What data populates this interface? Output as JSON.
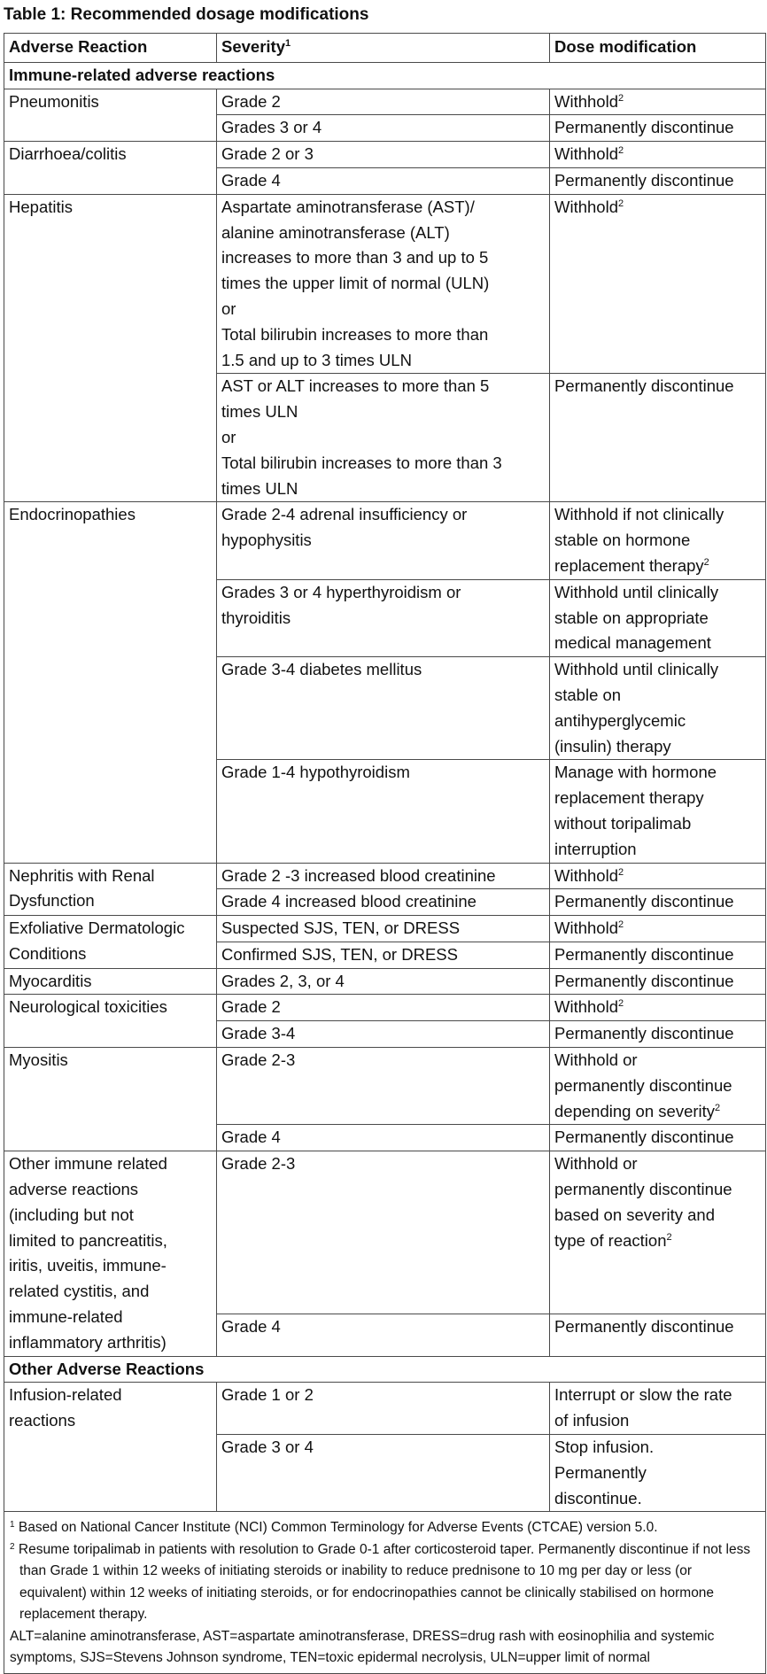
{
  "title": "Table 1: Recommended dosage modifications",
  "headers": {
    "reaction": "Adverse Reaction",
    "severity": "Severity",
    "severity_sup": "1",
    "dose": "Dose modification"
  },
  "sections": [
    {
      "heading": "Immune-related adverse reactions",
      "groups": [
        {
          "reaction": "Pneumonitis",
          "items": [
            {
              "severity": "Grade 2",
              "dose": "Withhold",
              "dose_sup": "2"
            },
            {
              "severity": "Grades 3 or 4",
              "dose": "Permanently discontinue"
            }
          ]
        },
        {
          "reaction": "Diarrhoea/colitis",
          "items": [
            {
              "severity": "Grade 2 or 3",
              "dose": "Withhold",
              "dose_sup": "2"
            },
            {
              "severity": "Grade 4",
              "dose": "Permanently discontinue"
            }
          ]
        },
        {
          "reaction": "Hepatitis",
          "items": [
            {
              "severity": "Aspartate aminotransferase (AST)/\nalanine aminotransferase (ALT)\nincreases to more than 3 and up to 5\ntimes the upper limit of normal (ULN)\nor\nTotal bilirubin increases to more than\n1.5 and up to 3 times ULN",
              "dose": "Withhold",
              "dose_sup": "2"
            },
            {
              "severity": "AST or ALT increases to more than 5\ntimes ULN\nor\nTotal bilirubin increases to more than 3\ntimes ULN",
              "dose": "Permanently discontinue"
            }
          ]
        },
        {
          "reaction": "Endocrinopathies",
          "items": [
            {
              "severity": "Grade 2-4 adrenal insufficiency or\nhypophysitis",
              "dose": "Withhold if not clinically\nstable on hormone\nreplacement therapy",
              "dose_sup": "2"
            },
            {
              "severity": "Grades 3 or 4 hyperthyroidism or\nthyroiditis",
              "dose": "Withhold until clinically\nstable on appropriate\nmedical management"
            },
            {
              "severity": "Grade 3-4 diabetes mellitus",
              "dose": "Withhold until clinically\nstable on\nantihyperglycemic\n(insulin) therapy"
            },
            {
              "severity": "Grade 1-4 hypothyroidism",
              "dose": "Manage with hormone\nreplacement therapy\nwithout toripalimab\ninterruption"
            }
          ]
        },
        {
          "reaction": "Nephritis with Renal\nDysfunction",
          "items": [
            {
              "severity": "Grade 2 -3 increased blood creatinine",
              "dose": "Withhold",
              "dose_sup": "2"
            },
            {
              "severity": "Grade 4 increased blood creatinine",
              "dose": "Permanently discontinue"
            }
          ]
        },
        {
          "reaction": "Exfoliative Dermatologic\nConditions",
          "items": [
            {
              "severity": "Suspected SJS, TEN, or DRESS",
              "dose": "Withhold",
              "dose_sup": "2"
            },
            {
              "severity": "Confirmed SJS, TEN, or DRESS",
              "dose": "Permanently discontinue"
            }
          ]
        },
        {
          "reaction": "Myocarditis",
          "items": [
            {
              "severity": "Grades 2, 3, or 4",
              "dose": "Permanently discontinue"
            }
          ]
        },
        {
          "reaction": "Neurological toxicities",
          "items": [
            {
              "severity": "Grade 2",
              "dose": "Withhold",
              "dose_sup": "2"
            },
            {
              "severity": "Grade 3-4",
              "dose": "Permanently discontinue"
            }
          ]
        },
        {
          "reaction": "Myositis",
          "items": [
            {
              "severity": "Grade 2-3",
              "dose": "Withhold or\npermanently discontinue\ndepending on severity",
              "dose_sup": "2"
            },
            {
              "severity": "Grade 4",
              "dose": "Permanently discontinue"
            }
          ]
        },
        {
          "reaction": "Other immune related\nadverse reactions\n(including but not\nlimited to pancreatitis,\niritis, uveitis, immune-\nrelated cystitis, and\nimmune-related\ninflammatory arthritis)",
          "items": [
            {
              "severity": "Grade 2-3",
              "dose": "Withhold or\npermanently discontinue\nbased on severity and\ntype of reaction",
              "dose_sup": "2"
            },
            {
              "severity": "Grade 4",
              "dose": "Permanently discontinue"
            }
          ]
        }
      ]
    },
    {
      "heading": "Other Adverse Reactions",
      "groups": [
        {
          "reaction": "Infusion-related\nreactions",
          "items": [
            {
              "severity": "Grade 1 or 2",
              "dose": "Interrupt or slow the rate\nof infusion"
            },
            {
              "severity": "Grade 3 or 4",
              "dose": "Stop infusion.\nPermanently\ndiscontinue."
            }
          ]
        }
      ]
    }
  ],
  "footnotes": [
    {
      "mark": "1",
      "text": "Based on National Cancer Institute (NCI) Common Terminology for Adverse Events (CTCAE) version 5.0."
    },
    {
      "mark": "2",
      "text": "Resume toripalimab in patients with resolution to Grade 0-1 after corticosteroid taper. Permanently discontinue if not less than Grade 1 within 12 weeks of initiating steroids or inability to reduce prednisone to 10 mg per day or less (or equivalent) within 12 weeks of initiating steroids, or for endocrinopathies cannot be clinically stabilised on hormone replacement therapy."
    }
  ],
  "abbreviations": "ALT=alanine aminotransferase, AST=aspartate aminotransferase, DRESS=drug rash with eosinophilia and systemic symptoms, SJS=Stevens Johnson syndrome, TEN=toxic epidermal necrolysis, ULN=upper limit of normal"
}
